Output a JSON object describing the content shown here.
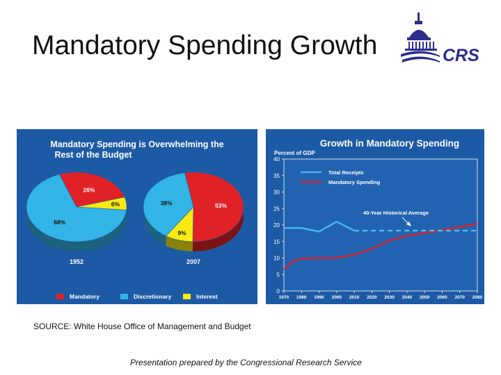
{
  "slide": {
    "title": "Mandatory Spending Growth",
    "logo_text": "CRS",
    "source": "SOURCE: White House Office of Management and Budget",
    "credit": "Presentation prepared by the Congressional Research Service"
  },
  "colors": {
    "panel_bg": "#1c5aa5",
    "plot_bg": "#2163b0",
    "mandatory": "#e02227",
    "discretionary": "#33b4e6",
    "interest": "#f8ea12",
    "total_receipts": "#47b6ea",
    "mandatory_spending": "#d9232d",
    "historical_average": "#4fb8ec",
    "logo": "#2b2e8c"
  },
  "chart_data": [
    {
      "type": "pie",
      "title_lines": [
        "Mandatory Spending is Overwhelming the",
        "Rest of the Budget"
      ],
      "legend": [
        "Mandatory",
        "Discretionary",
        "Interest"
      ],
      "pies": [
        {
          "label": "1952",
          "slices": [
            {
              "name": "Mandatory",
              "value": 26,
              "label": "26%"
            },
            {
              "name": "Interest",
              "value": 6,
              "label": "6%"
            },
            {
              "name": "Discretionary",
              "value": 68,
              "label": "68%"
            }
          ]
        },
        {
          "label": "2007",
          "slices": [
            {
              "name": "Mandatory",
              "value": 53,
              "label": "53%"
            },
            {
              "name": "Interest",
              "value": 9,
              "label": "9%"
            },
            {
              "name": "Discretionary",
              "value": 38,
              "label": "38%"
            }
          ]
        }
      ]
    },
    {
      "type": "line",
      "title": "Growth in Mandatory Spending",
      "ylabel": "Percent of GDP",
      "xlabel": "",
      "xlim": [
        1970,
        2080
      ],
      "ylim": [
        0,
        40
      ],
      "x_ticks": [
        1970,
        1980,
        1990,
        2000,
        2010,
        2020,
        2030,
        2040,
        2050,
        2060,
        2070,
        2080
      ],
      "y_ticks": [
        0,
        5,
        10,
        15,
        20,
        25,
        30,
        35,
        40
      ],
      "grid": false,
      "legend_position": "top-left",
      "annotation": "40-Year Historical Average",
      "series": [
        {
          "name": "Total Receipts",
          "x": [
            1970,
            1980,
            1990,
            2000,
            2010
          ],
          "y": [
            19.1,
            19.1,
            18.0,
            21.0,
            18.3
          ]
        },
        {
          "name": "Mandatory Spending",
          "x": [
            1970,
            1975,
            1980,
            1990,
            2000,
            2010,
            2020,
            2030,
            2040,
            2050,
            2060,
            2070,
            2080
          ],
          "y": [
            6.5,
            9.0,
            9.8,
            10.0,
            10.0,
            11.0,
            12.8,
            15.3,
            16.7,
            17.6,
            18.4,
            19.4,
            20.4
          ]
        },
        {
          "name": "40-Year Historical Average",
          "x": [
            2010,
            2080
          ],
          "y": [
            18.3,
            18.3
          ],
          "dashed": true
        }
      ]
    }
  ]
}
